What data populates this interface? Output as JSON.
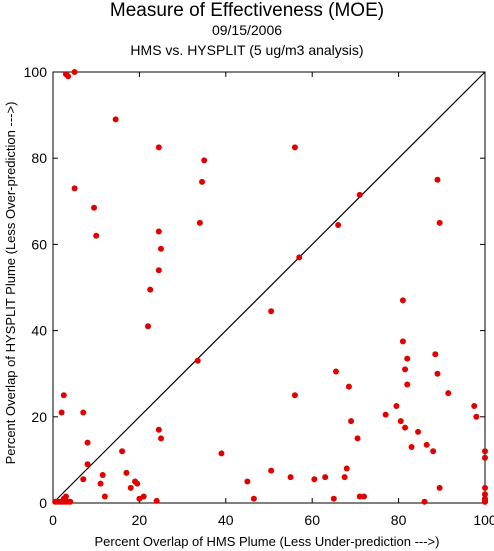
{
  "header": {
    "title": "Measure of Effectiveness (MOE)",
    "date": "09/15/2006",
    "subtitle": "HMS vs. HYSPLIT  (5 ug/m3 analysis)"
  },
  "colors": {
    "points": "#e00000",
    "axis": "#000000",
    "diagonal": "#000000"
  },
  "chart_data": {
    "type": "scatter",
    "title": "Measure of Effectiveness (MOE)",
    "subtitle": "HMS vs. HYSPLIT  (5 ug/m3 analysis)",
    "xlabel": "Percent Overlap of HMS Plume (Less Under-prediction --->)",
    "ylabel": "Percent Overlap of HYSPLIT Plume (Less Over-prediction --->)",
    "xlim": [
      0,
      100
    ],
    "ylim": [
      0,
      100
    ],
    "xticks": [
      0,
      20,
      40,
      60,
      80,
      100
    ],
    "yticks": [
      0,
      20,
      40,
      60,
      80,
      100
    ],
    "grid": false,
    "reference_line": "y = x",
    "series": [
      {
        "x": [
          0.5,
          1,
          1.5,
          2,
          2.5,
          2.5,
          3,
          3.5,
          4,
          3,
          2,
          2.5,
          3,
          3.5,
          5,
          5,
          14.5,
          24.5,
          35,
          7,
          8,
          9.5,
          7,
          8,
          10,
          11,
          12,
          11.5,
          16,
          17,
          18,
          19,
          19.5,
          21,
          22,
          20,
          22.5,
          24,
          24.5,
          24.5,
          25,
          24.5,
          25,
          33.5,
          34,
          34.5,
          39,
          45,
          46.5,
          50.5,
          50.5,
          55,
          56,
          56,
          57,
          60.5,
          63,
          65,
          65.5,
          66,
          68,
          68.5,
          69,
          67.5,
          70.5,
          71,
          71,
          72,
          77,
          79.5,
          80.5,
          81,
          81,
          81.5,
          81.5,
          82,
          82,
          83,
          84.5,
          86,
          86.5,
          88,
          88.5,
          89,
          89,
          89.5,
          89.5,
          91.5,
          97.5,
          98,
          100,
          100,
          100,
          100,
          100,
          100,
          100,
          100,
          100
        ],
        "y": [
          0.3,
          0.3,
          0.3,
          0.3,
          0.3,
          1,
          0.3,
          0.3,
          0.3,
          1.5,
          21,
          25,
          99.5,
          99,
          100,
          73,
          89,
          82.5,
          79.5,
          21,
          9,
          68.5,
          5.5,
          14,
          62,
          4.5,
          1.5,
          6.5,
          12,
          7,
          3.5,
          5,
          4.5,
          1.5,
          41,
          1,
          49.5,
          0.5,
          17,
          54,
          15,
          63,
          59,
          33,
          65,
          74.5,
          11.5,
          5,
          1,
          7.5,
          44.5,
          6,
          82.5,
          25,
          57,
          5.5,
          6,
          1,
          30.5,
          64.5,
          8,
          27,
          19,
          6,
          15,
          1.5,
          71.5,
          1.5,
          20.5,
          22.5,
          19,
          47,
          37.5,
          17.5,
          31,
          33.5,
          27.5,
          13,
          16.5,
          0.3,
          13.5,
          12,
          34.5,
          75,
          30,
          65,
          3.5,
          25.5,
          22.5,
          20,
          12,
          10.5,
          3.5,
          2,
          0.8,
          0.3,
          1,
          0.5,
          0.3
        ]
      }
    ]
  }
}
